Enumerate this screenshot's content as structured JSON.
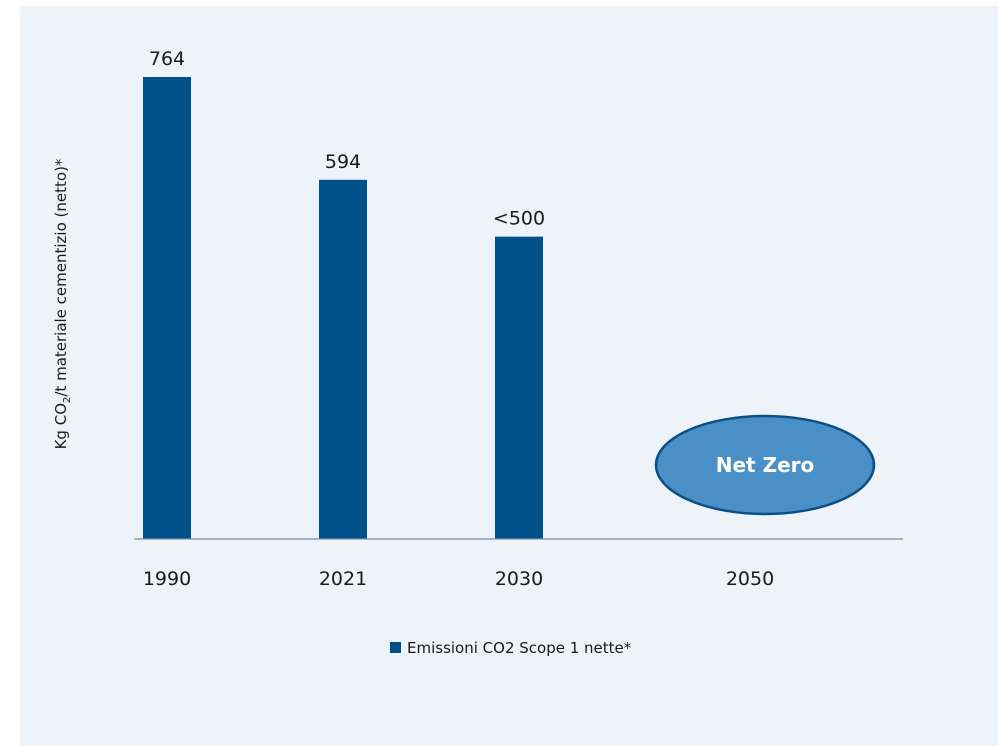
{
  "chart_data": {
    "type": "bar",
    "categories": [
      "1990",
      "2021",
      "2030",
      "2050"
    ],
    "series": [
      {
        "name": "Emissioni CO2 Scope 1 nette*",
        "values": [
          764,
          594,
          500,
          0
        ]
      }
    ],
    "data_labels": [
      "764",
      "594",
      "<500",
      ""
    ],
    "ylabel": {
      "pre": "Kg CO",
      "sub": "2",
      "post": "/t materiale cementizio (netto)*"
    },
    "ylim": [
      0,
      764
    ],
    "annotation": "Net Zero",
    "grid": false,
    "legend_position": "bottom",
    "colors": {
      "bar": "#00518a",
      "ellipse_fill": "#4a90c6",
      "ellipse_stroke": "#0a4f86",
      "panel": "#eef3f9",
      "axis": "#7f8fa0"
    }
  }
}
